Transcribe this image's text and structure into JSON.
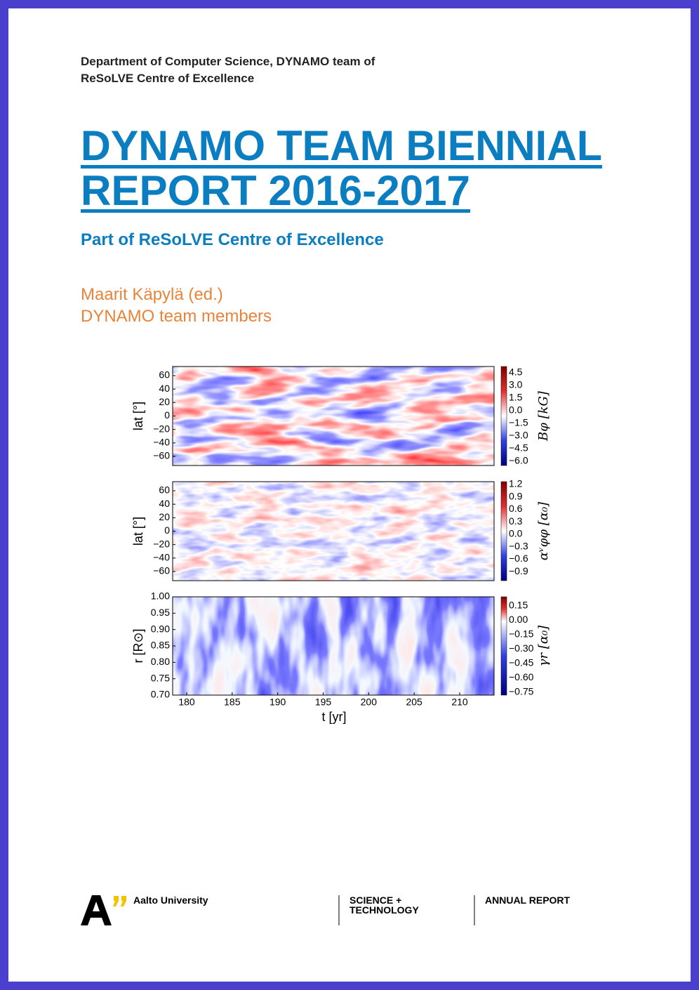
{
  "header": {
    "lines": [
      "Department of Computer Science, DYNAMO team of",
      "ReSoLVE Centre of Excellence"
    ]
  },
  "title": {
    "lines": [
      "DYNAMO TEAM BIENNIAL",
      "REPORT 2016-2017"
    ]
  },
  "subtitle": "Part of ReSoLVE Centre of Excellence",
  "authors": [
    "Maarit Käpylä (ed.)",
    "DYNAMO team members"
  ],
  "figure": {
    "panels": [
      {
        "ylabel": "lat [°]",
        "yticks": [
          "60",
          "40",
          "20",
          "0",
          "−20",
          "−40",
          "−60"
        ],
        "colorbar_label": "Bφ [kG]",
        "colorbar_ticks": [
          "4.5",
          "3.0",
          "1.5",
          "0.0",
          "−1.5",
          "−3.0",
          "−4.5",
          "−6.0"
        ]
      },
      {
        "ylabel": "lat [°]",
        "yticks": [
          "60",
          "40",
          "20",
          "0",
          "−20",
          "−40",
          "−60"
        ],
        "colorbar_label": "αᵛφφ [α₀]",
        "colorbar_ticks": [
          "1.2",
          "0.9",
          "0.6",
          "0.3",
          "0.0",
          "−0.3",
          "−0.6",
          "−0.9"
        ]
      },
      {
        "ylabel": "r [R⊙]",
        "yticks": [
          "1.00",
          "0.95",
          "0.90",
          "0.85",
          "0.80",
          "0.75",
          "0.70"
        ],
        "colorbar_label": "γr [α₀]",
        "colorbar_ticks": [
          "0.15",
          "0.00",
          "−0.15",
          "−0.30",
          "−0.45",
          "−0.60",
          "−0.75"
        ]
      }
    ],
    "xticks": [
      "180",
      "185",
      "190",
      "195",
      "200",
      "205",
      "210"
    ],
    "xlabel": "t [yr]"
  },
  "footer": {
    "university": "Aalto University",
    "school": [
      "SCIENCE +",
      "TECHNOLOGY"
    ],
    "series": "ANNUAL REPORT"
  }
}
